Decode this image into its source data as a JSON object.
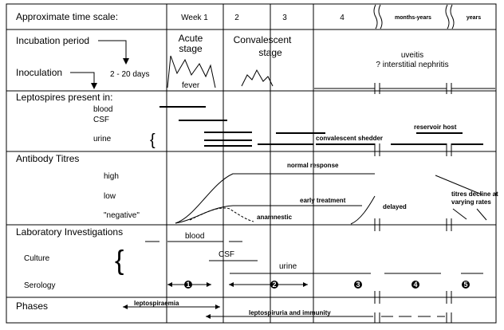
{
  "header": {
    "time_scale_label": "Approximate time scale:",
    "week1": "Week 1",
    "week2": "2",
    "week3": "3",
    "week4": "4",
    "months_years": "months-years",
    "years": "years"
  },
  "rows": {
    "incubation_period": "Incubation period",
    "inoculation": "Inoculation",
    "incubation_days": "2 - 20 days",
    "leptospires_present": "Leptospires present in:",
    "blood": "blood",
    "csf": "CSF",
    "urine": "urine",
    "antibody_titres": "Antibody Titres",
    "high": "high",
    "low": "low",
    "negative": "\"negative\"",
    "laboratory_investigations": "Laboratory Investigations",
    "culture": "Culture",
    "serology": "Serology",
    "phases": "Phases"
  },
  "stages": {
    "acute_line1": "Acute",
    "acute_line2": "stage",
    "fever": "fever",
    "convalescent_line1": "Convalescent",
    "convalescent_line2": "stage",
    "uveitis": "uveitis",
    "nephritis": "? interstitial nephritis"
  },
  "annotations": {
    "convalescent_shedder": "convalescent shedder",
    "reservoir_host": "reservoir host",
    "normal_response": "normal response",
    "early_treatment": "early treatment",
    "anamnestic": "anamnestic",
    "delayed": "delayed",
    "titres_decline_1": "titres decline at",
    "titres_decline_2": "varying rates",
    "lab_blood": "blood",
    "lab_csf": "CSF",
    "lab_urine": "urine",
    "serology_1": "1",
    "serology_2": "2",
    "serology_3": "3",
    "serology_4": "4",
    "serology_5": "5",
    "leptospiraemia": "leptospiraemia",
    "leptospiruria_immunity": "leptospiruria and immunity"
  }
}
